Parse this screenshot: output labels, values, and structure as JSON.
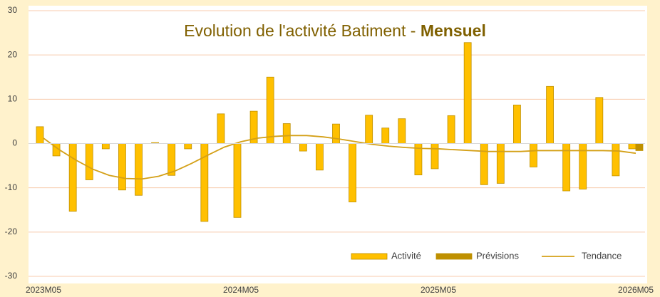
{
  "chart_data": {
    "type": "bar",
    "title": "Evolution de l'activité Batiment - ",
    "title_emphasis": "Mensuel",
    "categories": [
      "2023M05",
      null,
      null,
      null,
      null,
      null,
      null,
      null,
      null,
      null,
      null,
      null,
      "2024M05",
      null,
      null,
      null,
      null,
      null,
      null,
      null,
      null,
      null,
      null,
      null,
      "2025M05",
      null,
      null,
      null,
      null,
      null,
      null,
      null,
      null,
      null,
      null,
      null,
      "2026M05"
    ],
    "series": [
      {
        "name": "Activité",
        "type": "bar",
        "color": "#ffc000",
        "values": [
          3.8,
          -2.8,
          -15.3,
          -8.2,
          -1.2,
          -10.5,
          -11.7,
          0.2,
          -7.2,
          -1.2,
          -17.6,
          6.7,
          -16.7,
          7.3,
          15.0,
          4.5,
          -1.7,
          -6.0,
          4.4,
          -13.2,
          6.4,
          3.5,
          5.6,
          -7.1,
          -5.7,
          6.3,
          22.8,
          -9.3,
          -9.0,
          8.7,
          -5.3,
          12.9,
          -10.7,
          -10.3,
          10.4,
          -7.3,
          -1.2
        ]
      },
      {
        "name": "Prévisions",
        "type": "bar",
        "color": "#bf9000",
        "values": [
          null,
          null,
          null,
          null,
          null,
          null,
          null,
          null,
          null,
          null,
          null,
          null,
          null,
          null,
          null,
          null,
          null,
          null,
          null,
          null,
          null,
          null,
          null,
          null,
          null,
          null,
          null,
          null,
          null,
          null,
          null,
          null,
          null,
          null,
          null,
          null,
          -1.6
        ]
      },
      {
        "name": "Tendance",
        "type": "line",
        "color": "#d4a017",
        "values": [
          1.2,
          -1.5,
          -3.8,
          -5.8,
          -7.2,
          -7.9,
          -8.0,
          -7.4,
          -6.2,
          -4.5,
          -2.6,
          -0.8,
          0.4,
          1.2,
          1.6,
          1.8,
          1.8,
          1.5,
          1.0,
          0.4,
          -0.2,
          -0.6,
          -0.9,
          -1.1,
          -1.2,
          -1.4,
          -1.6,
          -1.8,
          -1.8,
          -1.8,
          -1.6,
          -1.6,
          -1.6,
          -1.6,
          -1.6,
          -1.7,
          -2.2
        ]
      }
    ],
    "ylim": [
      -30,
      30
    ],
    "yticks": [
      -30,
      -20,
      -10,
      0,
      10,
      20,
      30
    ],
    "grid": true,
    "legend": "bottom-right"
  }
}
